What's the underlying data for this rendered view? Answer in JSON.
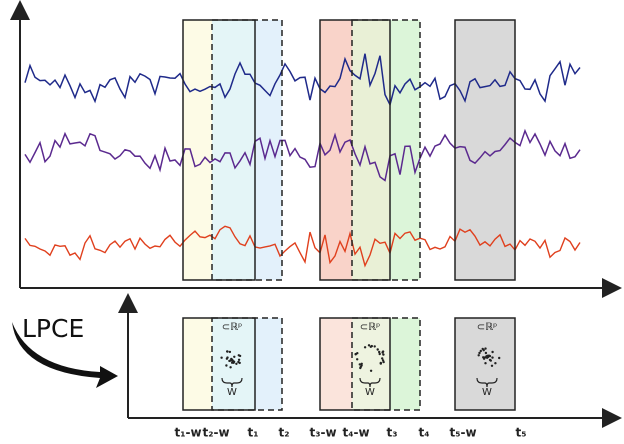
{
  "method": "LPCE",
  "time_labels": [
    "t₁-w",
    "t₂-w",
    "t₁",
    "t₂",
    "t₃-w",
    "t₄-w",
    "t₃",
    "t₄",
    "t₅-w",
    "t₅"
  ],
  "windows": [
    {
      "space": "⊂ℝᵖ",
      "width": "W"
    },
    {
      "space": "⊂ℝᵖ",
      "width": "W"
    },
    {
      "space": "⊂ℝᵖ",
      "width": "W"
    }
  ]
}
